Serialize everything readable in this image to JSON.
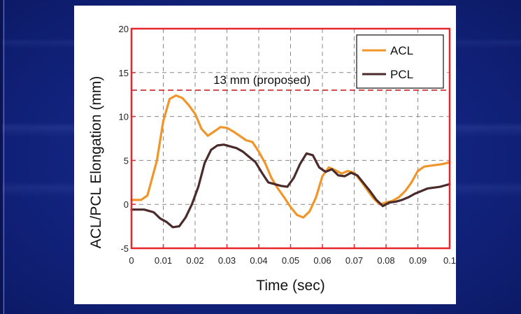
{
  "chart_data": {
    "type": "line",
    "title": "",
    "xlabel": "Time (sec)",
    "ylabel": "ACL/PCL Elongation (mm)",
    "xlim": [
      0,
      0.1
    ],
    "ylim": [
      -5,
      20
    ],
    "x_ticks": [
      "0",
      "0.01",
      "0.02",
      "0.03",
      "0.04",
      "0.05",
      "0.06",
      "0.07",
      "0.08",
      "0.09",
      "0.1"
    ],
    "y_ticks": [
      "-5",
      "0",
      "5",
      "10",
      "15",
      "20"
    ],
    "grid": true,
    "legend_position": "top-right",
    "colors": {
      "frame": "#e8262a",
      "ACL": "#f0952a",
      "PCL": "#4a2a2a",
      "grid": "#888888"
    },
    "reference_line": {
      "y": 13,
      "label": "13 mm (proposed)",
      "color": "#cc2222"
    },
    "series": [
      {
        "name": "ACL",
        "x": [
          0,
          0.003,
          0.005,
          0.008,
          0.01,
          0.012,
          0.014,
          0.016,
          0.018,
          0.02,
          0.022,
          0.024,
          0.026,
          0.028,
          0.03,
          0.032,
          0.034,
          0.036,
          0.038,
          0.04,
          0.042,
          0.044,
          0.046,
          0.048,
          0.05,
          0.052,
          0.054,
          0.056,
          0.058,
          0.06,
          0.062,
          0.064,
          0.066,
          0.068,
          0.07,
          0.072,
          0.074,
          0.076,
          0.078,
          0.08,
          0.082,
          0.084,
          0.086,
          0.088,
          0.09,
          0.092,
          0.094,
          0.096,
          0.098,
          0.1
        ],
        "values": [
          0.5,
          0.5,
          1.0,
          5.0,
          9.5,
          12.0,
          12.4,
          12.1,
          11.3,
          10.3,
          8.6,
          7.8,
          8.3,
          8.8,
          8.7,
          8.3,
          7.8,
          7.3,
          7.1,
          6.0,
          4.7,
          3.0,
          1.8,
          0.8,
          -0.3,
          -1.2,
          -1.5,
          -0.8,
          0.8,
          3.2,
          4.2,
          3.9,
          3.5,
          3.8,
          3.6,
          2.7,
          1.7,
          0.7,
          0.0,
          0.2,
          0.4,
          0.8,
          1.5,
          2.5,
          3.8,
          4.3,
          4.4,
          4.5,
          4.6,
          4.8
        ]
      },
      {
        "name": "PCL",
        "x": [
          0,
          0.004,
          0.007,
          0.009,
          0.011,
          0.013,
          0.015,
          0.017,
          0.019,
          0.021,
          0.023,
          0.025,
          0.027,
          0.029,
          0.031,
          0.033,
          0.035,
          0.037,
          0.039,
          0.041,
          0.043,
          0.045,
          0.047,
          0.049,
          0.051,
          0.053,
          0.055,
          0.057,
          0.059,
          0.061,
          0.063,
          0.065,
          0.067,
          0.069,
          0.071,
          0.073,
          0.075,
          0.077,
          0.079,
          0.081,
          0.083,
          0.085,
          0.087,
          0.089,
          0.091,
          0.093,
          0.095,
          0.097,
          0.1
        ],
        "values": [
          -0.6,
          -0.6,
          -0.9,
          -1.6,
          -2.0,
          -2.6,
          -2.5,
          -1.5,
          0.0,
          2.0,
          4.7,
          6.2,
          6.7,
          6.8,
          6.6,
          6.4,
          6.0,
          5.4,
          4.8,
          3.6,
          2.5,
          2.3,
          2.1,
          2.0,
          3.0,
          4.6,
          5.8,
          5.6,
          4.2,
          3.7,
          4.0,
          3.3,
          3.2,
          3.6,
          3.3,
          2.4,
          1.5,
          0.5,
          -0.2,
          0.2,
          0.3,
          0.5,
          0.8,
          1.2,
          1.5,
          1.8,
          1.9,
          2.0,
          2.3
        ]
      }
    ]
  }
}
